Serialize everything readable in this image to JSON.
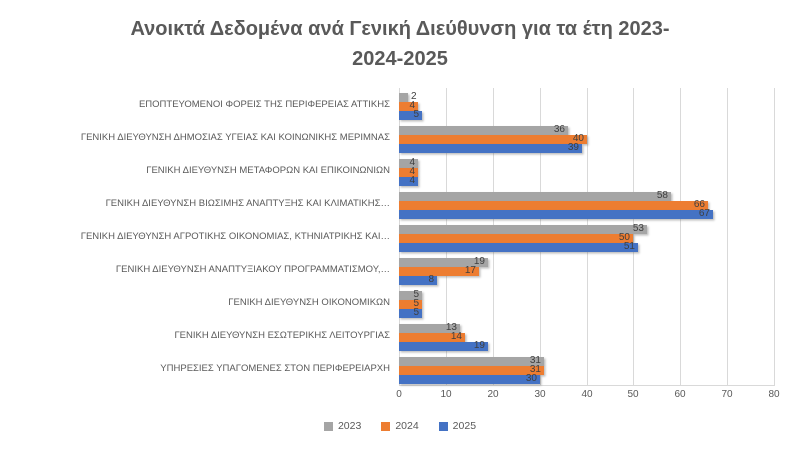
{
  "chart_data": {
    "type": "bar",
    "orientation": "horizontal",
    "title": "Ανοικτά Δεδομένα ανά Γενική Διεύθυνση για τα έτη 2023-2024-2025",
    "title_lines": [
      "Ανοικτά Δεδομένα ανά Γενική Διεύθυνση για τα έτη 2023-",
      "2024-2025"
    ],
    "categories": [
      "ΕΠΟΠΤΕΥΟΜΕΝΟΙ ΦΟΡΕΙΣ ΤΗΣ ΠΕΡΙΦΕΡΕΙΑΣ ΑΤΤΙΚΗΣ",
      "ΓΕΝΙΚΗ ΔΙΕΥΘΥΝΣΗ ΔΗΜΟΣΙΑΣ ΥΓΕΙΑΣ ΚΑΙ ΚΟΙΝΩΝΙΚΗΣ ΜΕΡΙΜΝΑΣ",
      "ΓΕΝΙΚΗ ΔΙΕΥΘΥΝΣΗ ΜΕΤΑΦΟΡΩΝ ΚΑΙ ΕΠΙΚΟΙΝΩΝΙΩΝ",
      "ΓΕΝΙΚΗ ΔΙΕΥΘΥΝΣΗ ΒΙΩΣΙΜΗΣ ΑΝΑΠΤΥΞΗΣ ΚΑΙ ΚΛΙΜΑΤΙΚΗΣ…",
      "ΓΕΝΙΚΗ ΔΙΕΥΘΥΝΣΗ ΑΓΡΟΤΙΚΗΣ ΟΙΚΟΝΟΜΙΑΣ, ΚΤΗΝΙΑΤΡΙΚΗΣ ΚΑΙ…",
      "ΓΕΝΙΚΗ ΔΙΕΥΘΥΝΣΗ ΑΝΑΠΤΥΞΙΑΚΟΥ ΠΡΟΓΡΑΜΜΑΤΙΣΜΟΥ,…",
      "ΓΕΝΙΚΗ ΔΙΕΥΘΥΝΣΗ ΟΙΚΟΝΟΜΙΚΩΝ",
      "ΓΕΝΙΚΗ ΔΙΕΥΘΥΝΣΗ ΕΣΩΤΕΡΙΚΗΣ ΛΕΙΤΟΥΡΓΙΑΣ",
      "ΥΠΗΡΕΣΙΕΣ ΥΠΑΓΟΜΕΝΕΣ ΣΤΟΝ ΠΕΡΙΦΕΡΕΙΑΡΧΗ"
    ],
    "series": [
      {
        "name": "2023",
        "color": "#A5A5A5",
        "values": [
          2,
          36,
          4,
          58,
          53,
          19,
          5,
          13,
          31
        ]
      },
      {
        "name": "2024",
        "color": "#ED7D31",
        "values": [
          4,
          40,
          4,
          66,
          50,
          17,
          5,
          14,
          31
        ]
      },
      {
        "name": "2025",
        "color": "#4472C4",
        "values": [
          5,
          39,
          4,
          67,
          51,
          8,
          5,
          19,
          30
        ]
      }
    ],
    "xlim": [
      0,
      80
    ],
    "x_ticks": [
      0,
      10,
      20,
      30,
      40,
      50,
      60,
      70,
      80
    ],
    "grid": true,
    "legend_position": "bottom",
    "value_labels": true
  },
  "colors": {
    "title": "#595959",
    "axis_text": "#595959",
    "data_label": "#3F3F3F",
    "gridline": "#D9D9D9",
    "series_2023": "#A5A5A5",
    "series_2024": "#ED7D31",
    "series_2025": "#4472C4",
    "background": "#FFFFFF"
  }
}
